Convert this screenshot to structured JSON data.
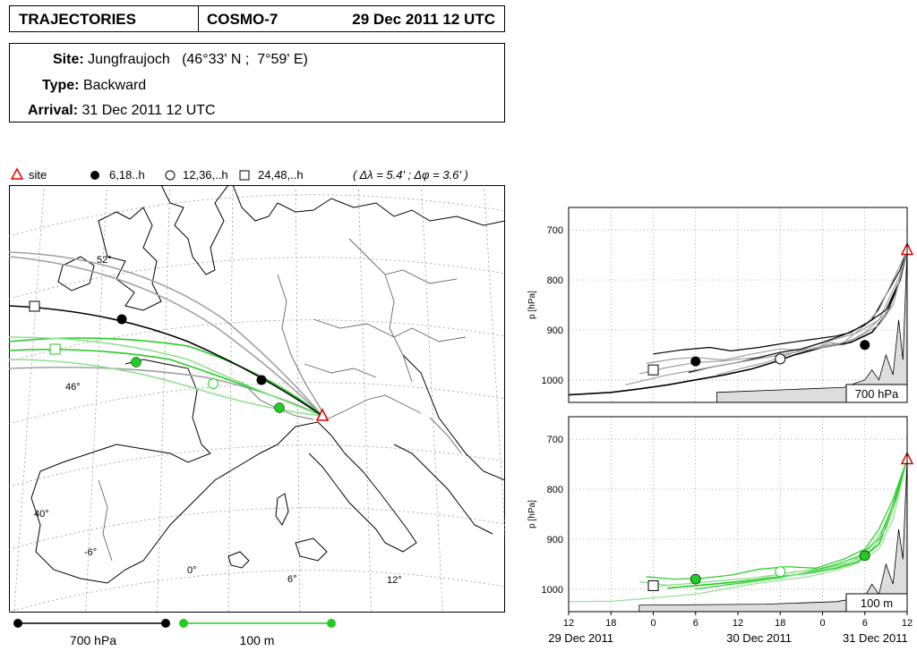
{
  "header": {
    "title": "TRAJECTORIES",
    "model": "COSMO-7",
    "date": "29 Dec 2011 12 UTC"
  },
  "info": {
    "site_label": "Site:",
    "site_value": "Jungfraujoch   (46°33' N ;  7°59' E)",
    "type_label": "Type:",
    "type_value": "Backward",
    "arrival_label": "Arrival:",
    "arrival_value": "31 Dec 2011 12 UTC"
  },
  "legend": {
    "site": "site",
    "m1": "6,18..h",
    "m2": "12,36,..h",
    "m3": "24,48,..h",
    "resolution": "( Δλ = 5.4' ; Δφ = 3.6' )"
  },
  "map_labels": {
    "lat52": "52°",
    "lat46": "46°",
    "lat40": "40°",
    "lon_m6": "-6°",
    "lon0": "0°",
    "lon6": "6°",
    "lon12": "12°"
  },
  "bottom_legend": {
    "black": "700 hPa",
    "green": "100 m"
  },
  "colors": {
    "black_traj": "#000000",
    "gray_traj": "#a0a0a0",
    "green_traj": "#22cc22",
    "lightgreen_traj": "#90e090",
    "site": "#e00000",
    "terrain": "#dddddd"
  },
  "chart_data": [
    {
      "type": "line",
      "title": "",
      "panel_label": "700 hPa",
      "ylabel": "p [hPa]",
      "yticks": [
        700,
        800,
        900,
        1000
      ],
      "ylim": [
        1045,
        655
      ],
      "xlim": [
        -48,
        0
      ],
      "xlabel": "",
      "series": [
        {
          "values": [
            [
              -37,
              967
            ],
            [
              -33,
              958
            ],
            [
              -30,
              955
            ],
            [
              -26,
              960
            ],
            [
              -22,
              948
            ],
            [
              -18,
              938
            ],
            [
              -14,
              942
            ],
            [
              -11,
              925
            ],
            [
              -9,
              930
            ],
            [
              -6,
              905
            ],
            [
              -4,
              880
            ],
            [
              -2,
              820
            ],
            [
              -1,
              790
            ],
            [
              0,
              740
            ]
          ]
        },
        {
          "values": [
            [
              -36,
              948
            ],
            [
              -32,
              940
            ],
            [
              -28,
              935
            ],
            [
              -25,
              942
            ],
            [
              -21,
              935
            ],
            [
              -18,
              928
            ],
            [
              -14,
              920
            ],
            [
              -10,
              912
            ],
            [
              -8,
              905
            ],
            [
              -5,
              880
            ],
            [
              -3,
              830
            ],
            [
              -1,
              780
            ],
            [
              0,
              740
            ]
          ]
        },
        {
          "values": [
            [
              -38,
              988
            ],
            [
              -34,
              975
            ],
            [
              -30,
              965
            ],
            [
              -26,
              962
            ],
            [
              -23,
              957
            ],
            [
              -20,
              955
            ],
            [
              -16,
              945
            ],
            [
              -12,
              932
            ],
            [
              -9,
              925
            ],
            [
              -6,
              890
            ],
            [
              -4,
              860
            ],
            [
              -2,
              800
            ],
            [
              0,
              740
            ]
          ]
        },
        {
          "values": [
            [
              -48,
              1030
            ],
            [
              -42,
              1025
            ],
            [
              -38,
              1018
            ],
            [
              -34,
              1010
            ],
            [
              -30,
              1000
            ],
            [
              -26,
              990
            ],
            [
              -22,
              978
            ],
            [
              -19,
              965
            ],
            [
              -16,
              950
            ],
            [
              -12,
              935
            ],
            [
              -8,
              925
            ],
            [
              -5,
              905
            ],
            [
              -3,
              870
            ],
            [
              -1,
              800
            ],
            [
              0,
              740
            ]
          ]
        },
        {
          "values": [
            [
              -27,
              990
            ],
            [
              -23,
              975
            ],
            [
              -20,
              965
            ],
            [
              -17,
              950
            ],
            [
              -13,
              930
            ],
            [
              -10,
              918
            ],
            [
              -7,
              905
            ],
            [
              -4,
              880
            ],
            [
              -2,
              850
            ],
            [
              0,
              740
            ]
          ]
        },
        {
          "values": [
            [
              -31,
              985
            ],
            [
              -28,
              975
            ],
            [
              -24,
              965
            ],
            [
              -21,
              955
            ],
            [
              -18,
              945
            ],
            [
              -15,
              938
            ],
            [
              -12,
              925
            ],
            [
              -9,
              910
            ],
            [
              -6,
              890
            ],
            [
              -3,
              860
            ],
            [
              -1,
              800
            ],
            [
              0,
              740
            ]
          ]
        },
        {
          "values": [
            [
              -40,
              1010
            ],
            [
              -37,
              1000
            ],
            [
              -34,
              990
            ],
            [
              -30,
              980
            ],
            [
              -26,
              970
            ],
            [
              -22,
              960
            ],
            [
              -18,
              950
            ],
            [
              -14,
              940
            ],
            [
              -10,
              930
            ],
            [
              -7,
              915
            ],
            [
              -4,
              890
            ],
            [
              -2,
              850
            ],
            [
              0,
              740
            ]
          ]
        }
      ],
      "markers": [
        {
          "kind": "open_square",
          "x": -36,
          "y": 980
        },
        {
          "kind": "filled_circle",
          "x": -30,
          "y": 963
        },
        {
          "kind": "open_circle",
          "x": -18,
          "y": 958
        },
        {
          "kind": "filled_circle",
          "x": -6,
          "y": 930
        },
        {
          "kind": "site",
          "x": 0,
          "y": 740
        }
      ]
    },
    {
      "type": "line",
      "title": "",
      "panel_label": "100 m",
      "ylabel": "p [hPa]",
      "yticks": [
        700,
        800,
        900,
        1000
      ],
      "ylim": [
        1045,
        655
      ],
      "xlim": [
        -48,
        0
      ],
      "xtick_labels": [
        "12",
        "18",
        "0",
        "6",
        "12",
        "18",
        "0",
        "6",
        "12"
      ],
      "date_labels": [
        "29 Dec 2011",
        "30 Dec 2011",
        "31 Dec 2011"
      ],
      "xlabel": "",
      "series": [
        {
          "values": [
            [
              -38,
              985
            ],
            [
              -34,
              992
            ],
            [
              -30,
              988
            ],
            [
              -26,
              982
            ],
            [
              -22,
              978
            ],
            [
              -18,
              970
            ],
            [
              -14,
              962
            ],
            [
              -10,
              955
            ],
            [
              -7,
              940
            ],
            [
              -5,
              920
            ],
            [
              -3,
              880
            ],
            [
              -1,
              800
            ],
            [
              0,
              740
            ]
          ]
        },
        {
          "values": [
            [
              -37,
              975
            ],
            [
              -33,
              980
            ],
            [
              -29,
              978
            ],
            [
              -25,
              972
            ],
            [
              -21,
              960
            ],
            [
              -17,
              955
            ],
            [
              -13,
              958
            ],
            [
              -9,
              940
            ],
            [
              -6,
              920
            ],
            [
              -4,
              880
            ],
            [
              -2,
              820
            ],
            [
              0,
              740
            ]
          ]
        },
        {
          "values": [
            [
              -36,
              995
            ],
            [
              -32,
              990
            ],
            [
              -28,
              985
            ],
            [
              -24,
              980
            ],
            [
              -20,
              975
            ],
            [
              -16,
              965
            ],
            [
              -12,
              960
            ],
            [
              -8,
              945
            ],
            [
              -6,
              930
            ],
            [
              -3,
              870
            ],
            [
              -1,
              790
            ],
            [
              0,
              740
            ]
          ]
        },
        {
          "values": [
            [
              -34,
              998
            ],
            [
              -30,
              993
            ],
            [
              -26,
              988
            ],
            [
              -22,
              982
            ],
            [
              -18,
              975
            ],
            [
              -14,
              968
            ],
            [
              -10,
              958
            ],
            [
              -7,
              945
            ],
            [
              -4,
              910
            ],
            [
              -2,
              840
            ],
            [
              0,
              740
            ]
          ]
        },
        {
          "values": [
            [
              -48,
              1025
            ],
            [
              -42,
              1024
            ],
            [
              -38,
              1020
            ],
            [
              -34,
              1015
            ],
            [
              -30,
              1010
            ],
            [
              -26,
              1000
            ],
            [
              -22,
              990
            ],
            [
              -18,
              982
            ],
            [
              -14,
              975
            ],
            [
              -10,
              962
            ],
            [
              -7,
              948
            ],
            [
              -4,
              920
            ],
            [
              -2,
              860
            ],
            [
              0,
              740
            ]
          ]
        },
        {
          "values": [
            [
              -30,
              1000
            ],
            [
              -26,
              992
            ],
            [
              -22,
              985
            ],
            [
              -18,
              978
            ],
            [
              -14,
              965
            ],
            [
              -10,
              950
            ],
            [
              -7,
              935
            ],
            [
              -4,
              900
            ],
            [
              -2,
              830
            ],
            [
              0,
              740
            ]
          ]
        },
        {
          "values": [
            [
              -24,
              990
            ],
            [
              -20,
              982
            ],
            [
              -16,
              972
            ],
            [
              -12,
              960
            ],
            [
              -9,
              952
            ],
            [
              -6,
              930
            ],
            [
              -3,
              880
            ],
            [
              -1,
              800
            ],
            [
              0,
              740
            ]
          ]
        }
      ],
      "markers": [
        {
          "kind": "open_square",
          "x": -36,
          "y": 993
        },
        {
          "kind": "filled_green",
          "x": -30,
          "y": 980
        },
        {
          "kind": "open_green",
          "x": -18,
          "y": 965
        },
        {
          "kind": "filled_green",
          "x": -6,
          "y": 933
        },
        {
          "kind": "site",
          "x": 0,
          "y": 740
        }
      ]
    }
  ]
}
